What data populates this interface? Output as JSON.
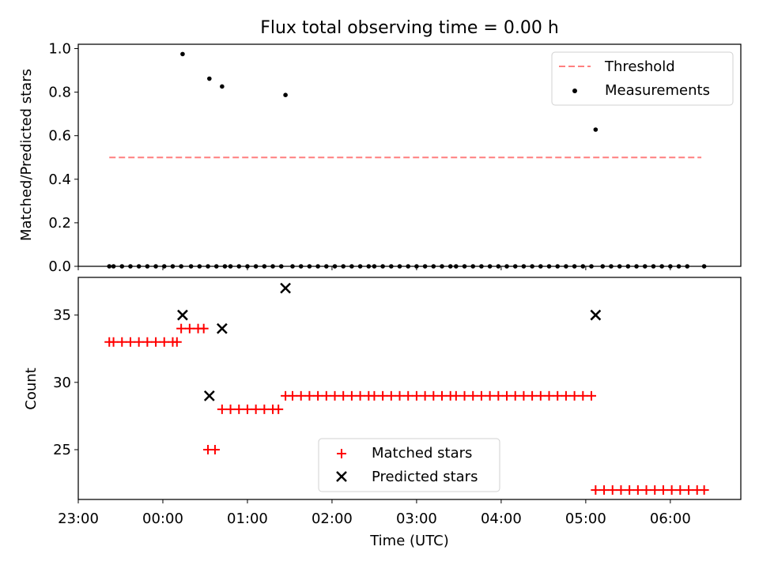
{
  "chart_data": [
    {
      "panel": "top",
      "type": "scatter",
      "title": "Flux total observing time = 0.00 h",
      "xlabel": "",
      "ylabel": "Matched/Predicted stars",
      "xlim": [
        -60,
        410
      ],
      "ylim": [
        0,
        1.02
      ],
      "yticks": [
        0.0,
        0.2,
        0.4,
        0.6,
        0.8,
        1.0
      ],
      "ytick_labels": [
        "0.0",
        "0.2",
        "0.4",
        "0.6",
        "0.8",
        "1.0"
      ],
      "legend": {
        "position": "top-right",
        "entries": [
          "Threshold",
          "Measurements"
        ]
      },
      "threshold": {
        "name": "Threshold",
        "value": 0.5,
        "x": [
          -38,
          382
        ],
        "color": "#ff7f7f"
      },
      "measurements": {
        "name": "Measurements",
        "color": "#000000",
        "points": [
          [
            14,
            0.975
          ],
          [
            33,
            0.862
          ],
          [
            42,
            0.826
          ],
          [
            87,
            0.787
          ],
          [
            307,
            0.628
          ]
        ],
        "zero_x": [
          -38,
          -35,
          -29,
          -23,
          -17,
          -11,
          -5,
          1,
          7,
          13,
          20,
          26,
          32,
          38,
          44,
          48,
          54,
          60,
          66,
          72,
          78,
          84,
          92,
          98,
          104,
          110,
          116,
          122,
          128,
          134,
          140,
          146,
          150,
          156,
          162,
          168,
          174,
          180,
          186,
          192,
          198,
          204,
          208,
          214,
          220,
          226,
          232,
          238,
          244,
          250,
          256,
          262,
          268,
          274,
          280,
          286,
          292,
          298,
          304,
          312,
          318,
          324,
          330,
          336,
          342,
          348,
          354,
          360,
          366,
          372,
          384
        ]
      }
    },
    {
      "panel": "bottom",
      "type": "scatter",
      "xlabel": "Time (UTC)",
      "ylabel": "Count",
      "xlim": [
        -60,
        410
      ],
      "ylim": [
        21.3,
        37.8
      ],
      "yticks": [
        25,
        30,
        35
      ],
      "ytick_labels": [
        "25",
        "30",
        "35"
      ],
      "xticks": [
        -60,
        0,
        60,
        120,
        180,
        240,
        300,
        360
      ],
      "xtick_labels": [
        "23:00",
        "00:00",
        "01:00",
        "02:00",
        "03:00",
        "04:00",
        "05:00",
        "06:00"
      ],
      "legend": {
        "position": "lower-center",
        "entries": [
          "Matched stars",
          "Predicted stars"
        ]
      },
      "matched": {
        "name": "Matched stars",
        "color": "#ff0000",
        "points": [
          [
            -38,
            33
          ],
          [
            -35,
            33
          ],
          [
            -29,
            33
          ],
          [
            -23,
            33
          ],
          [
            -17,
            33
          ],
          [
            -11,
            33
          ],
          [
            -5,
            33
          ],
          [
            1,
            33
          ],
          [
            7,
            33
          ],
          [
            10,
            33
          ],
          [
            13,
            34
          ],
          [
            19,
            34
          ],
          [
            25,
            34
          ],
          [
            29,
            34
          ],
          [
            32,
            25
          ],
          [
            37,
            25
          ],
          [
            42,
            28
          ],
          [
            48,
            28
          ],
          [
            54,
            28
          ],
          [
            60,
            28
          ],
          [
            66,
            28
          ],
          [
            72,
            28
          ],
          [
            78,
            28
          ],
          [
            82,
            28
          ],
          [
            87,
            29
          ],
          [
            92,
            29
          ],
          [
            98,
            29
          ],
          [
            104,
            29
          ],
          [
            110,
            29
          ],
          [
            116,
            29
          ],
          [
            122,
            29
          ],
          [
            128,
            29
          ],
          [
            134,
            29
          ],
          [
            140,
            29
          ],
          [
            146,
            29
          ],
          [
            150,
            29
          ],
          [
            156,
            29
          ],
          [
            162,
            29
          ],
          [
            168,
            29
          ],
          [
            174,
            29
          ],
          [
            180,
            29
          ],
          [
            186,
            29
          ],
          [
            192,
            29
          ],
          [
            198,
            29
          ],
          [
            204,
            29
          ],
          [
            208,
            29
          ],
          [
            214,
            29
          ],
          [
            220,
            29
          ],
          [
            226,
            29
          ],
          [
            232,
            29
          ],
          [
            238,
            29
          ],
          [
            244,
            29
          ],
          [
            250,
            29
          ],
          [
            256,
            29
          ],
          [
            262,
            29
          ],
          [
            268,
            29
          ],
          [
            274,
            29
          ],
          [
            280,
            29
          ],
          [
            286,
            29
          ],
          [
            292,
            29
          ],
          [
            298,
            29
          ],
          [
            304,
            29
          ],
          [
            307,
            22
          ],
          [
            313,
            22
          ],
          [
            319,
            22
          ],
          [
            325,
            22
          ],
          [
            331,
            22
          ],
          [
            337,
            22
          ],
          [
            343,
            22
          ],
          [
            349,
            22
          ],
          [
            355,
            22
          ],
          [
            361,
            22
          ],
          [
            367,
            22
          ],
          [
            373,
            22
          ],
          [
            379,
            22
          ],
          [
            384,
            22
          ]
        ]
      },
      "predicted": {
        "name": "Predicted stars",
        "color": "#000000",
        "points": [
          [
            14,
            35
          ],
          [
            33,
            29
          ],
          [
            42,
            34
          ],
          [
            87,
            37
          ],
          [
            307,
            35
          ]
        ]
      }
    }
  ]
}
